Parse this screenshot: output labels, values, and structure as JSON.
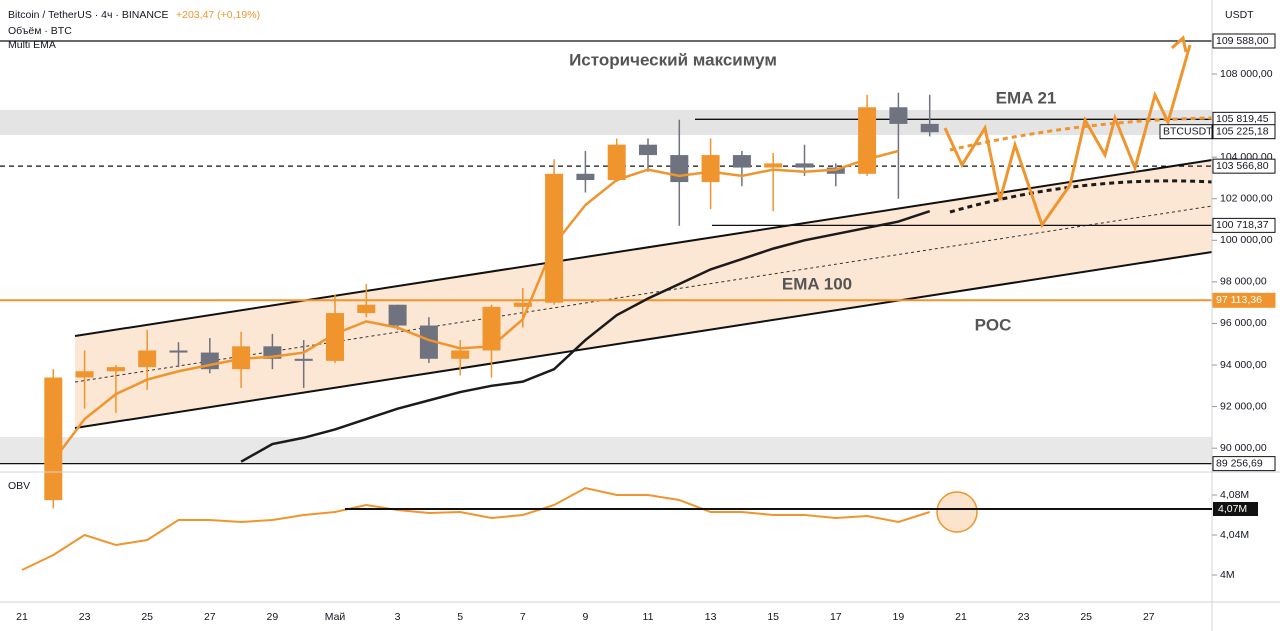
{
  "header": {
    "symbol": "Bitcoin / TetherUS · 4ч · BINANCE",
    "change": "+203,47 (+0,19%)",
    "volume": "Объём · BTC",
    "indicator": "Multi EMA"
  },
  "chart_data": {
    "type": "candlestick",
    "currency": "USDT",
    "annotations": [
      "Исторический максимум",
      "EMA 21",
      "EMA 100",
      "POC"
    ],
    "categories": [
      "21",
      null,
      "23",
      null,
      "25",
      null,
      "27",
      null,
      "29",
      null,
      "Май",
      null,
      "3",
      null,
      "5",
      null,
      "7",
      null,
      "9",
      null,
      "11",
      null,
      "13",
      null,
      "15",
      null,
      "17",
      null,
      "19",
      null,
      "21",
      null,
      "23",
      null,
      "25",
      null,
      "27"
    ],
    "open": [
      null,
      87500,
      93400,
      93700,
      93900,
      94700,
      94600,
      93800,
      94900,
      94300,
      94200,
      96500,
      96900,
      95900,
      94300,
      94700,
      96800,
      97000,
      103200,
      102900,
      104600,
      104100,
      102800,
      104100,
      103500,
      103700,
      103500,
      103200,
      106400,
      105600,
      null,
      null,
      null,
      null,
      null,
      null,
      null
    ],
    "high": [
      null,
      93800,
      94700,
      94000,
      95700,
      95100,
      95300,
      95600,
      95500,
      95200,
      97400,
      97900,
      96900,
      96300,
      95200,
      96900,
      97700,
      103900,
      104300,
      104900,
      104900,
      105800,
      104900,
      104300,
      104200,
      104600,
      103700,
      107000,
      107100,
      107000,
      null,
      null,
      null,
      null,
      null,
      null,
      null
    ],
    "low": [
      null,
      87100,
      91900,
      91700,
      92800,
      93900,
      93600,
      92900,
      93800,
      92900,
      94100,
      96300,
      95700,
      94100,
      93500,
      93400,
      95800,
      96900,
      102300,
      102800,
      103300,
      100700,
      101500,
      102600,
      101400,
      103100,
      102600,
      103100,
      102000,
      105000,
      null,
      null,
      null,
      null,
      null,
      null,
      null
    ],
    "close": [
      null,
      93400,
      93700,
      93900,
      94700,
      94600,
      93800,
      94900,
      94300,
      94200,
      96500,
      96900,
      95900,
      94300,
      94700,
      96800,
      97000,
      103200,
      102900,
      104600,
      104100,
      102800,
      104100,
      103500,
      103700,
      103500,
      103200,
      106400,
      105600,
      105200,
      null,
      null,
      null,
      null,
      null,
      null,
      null
    ],
    "up_color": "#f0952e",
    "down_color": "#6f7380",
    "series": [
      {
        "name": "EMA 21",
        "color": "#f0952e",
        "values": [
          null,
          89400,
          91400,
          92600,
          93300,
          93700,
          94000,
          94300,
          94400,
          94600,
          95500,
          96100,
          95800,
          95200,
          94800,
          94900,
          96200,
          99800,
          101700,
          102900,
          103400,
          103100,
          103300,
          103100,
          103400,
          103300,
          103400,
          103900,
          104300,
          null,
          null,
          null,
          null,
          null,
          null,
          null,
          null
        ]
      },
      {
        "name": "EMA 100",
        "color": "#1b1b1b",
        "values": [
          null,
          null,
          null,
          null,
          null,
          null,
          null,
          89350,
          90200,
          90500,
          90900,
          91400,
          91900,
          92300,
          92700,
          93000,
          93200,
          93800,
          95200,
          96400,
          97200,
          97900,
          98600,
          99100,
          99600,
          100000,
          100300,
          100600,
          100900,
          101400,
          null,
          null,
          null,
          null,
          null,
          null,
          null
        ]
      }
    ],
    "ylim": [
      88950,
      111560
    ],
    "yticks": [
      {
        "value": 90000,
        "label": "90 000,00"
      },
      {
        "value": 92000,
        "label": "92 000,00"
      },
      {
        "value": 94000,
        "label": "94 000,00"
      },
      {
        "value": 96000,
        "label": "96 000,00"
      },
      {
        "value": 98000,
        "label": "98 000,00"
      },
      {
        "value": 100000,
        "label": "100 000,00"
      },
      {
        "value": 102000,
        "label": "102 000,00"
      },
      {
        "value": 104000,
        "label": "104 000,00"
      },
      {
        "value": 108000,
        "label": "108 000,00"
      }
    ],
    "price_markers": [
      {
        "value": 109588,
        "label": "109 588,00"
      },
      {
        "value": 105819.45,
        "label": "105 819,45"
      },
      {
        "value": 105225.18,
        "label": "105 225,18",
        "tag": "BTCUSDT"
      },
      {
        "value": 103566.8,
        "label": "103 566,80"
      },
      {
        "value": 100718.37,
        "label": "100 718,37"
      },
      {
        "value": 97113.36,
        "label": "97 113,36",
        "color": "#f0952e"
      },
      {
        "value": 89256.69,
        "label": "89 256,69"
      }
    ],
    "obv": {
      "name": "OBV",
      "color": "#f0952e",
      "values": [
        4005000,
        4020000,
        4040000,
        4030000,
        4035000,
        4055000,
        4055000,
        4053000,
        4055000,
        4060000,
        4063000,
        4070000,
        4065000,
        4062000,
        4063000,
        4057000,
        4060000,
        4070000,
        4087000,
        4080000,
        4080000,
        4075000,
        4063000,
        4063000,
        4060000,
        4060000,
        4057000,
        4059000,
        4053000,
        4063000,
        null,
        null,
        null,
        null,
        null,
        null,
        null
      ],
      "ylim": [
        3975000,
        4097000
      ],
      "yticks": [
        {
          "value": 4000000,
          "label": "4M"
        },
        {
          "value": 4040000,
          "label": "4,04M"
        },
        {
          "value": 4080000,
          "label": "4,08M"
        }
      ],
      "marker": {
        "value": 4066000,
        "label": "4,07M"
      }
    }
  }
}
